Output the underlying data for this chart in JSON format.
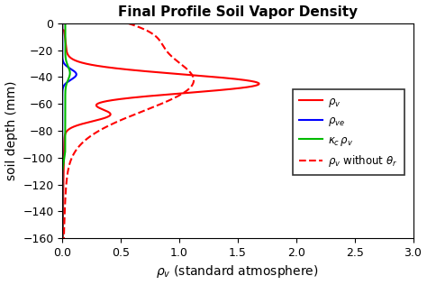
{
  "title": "Final Profile Soil Vapor Density",
  "xlabel": "$\\rho_v$ (standard atmosphere)",
  "ylabel": "soil depth (mm)",
  "xlim": [
    0,
    3
  ],
  "ylim": [
    -160,
    0
  ],
  "xticks": [
    0,
    0.5,
    1,
    1.5,
    2,
    2.5,
    3
  ],
  "yticks": [
    0,
    -20,
    -40,
    -60,
    -80,
    -100,
    -120,
    -140,
    -160
  ],
  "legend": [
    {
      "label": "$\\rho_v$",
      "color": "#ff0000",
      "linestyle": "solid"
    },
    {
      "label": "$\\rho_{ve}$",
      "color": "#0000ff",
      "linestyle": "solid"
    },
    {
      "label": "$\\kappa_c\\,\\rho_v$",
      "color": "#00bb00",
      "linestyle": "solid"
    },
    {
      "label": "$\\rho_v$ without $\\theta_r$",
      "color": "#ff0000",
      "linestyle": "dashed"
    }
  ],
  "background_color": "#ffffff",
  "title_fontsize": 11,
  "label_fontsize": 10
}
